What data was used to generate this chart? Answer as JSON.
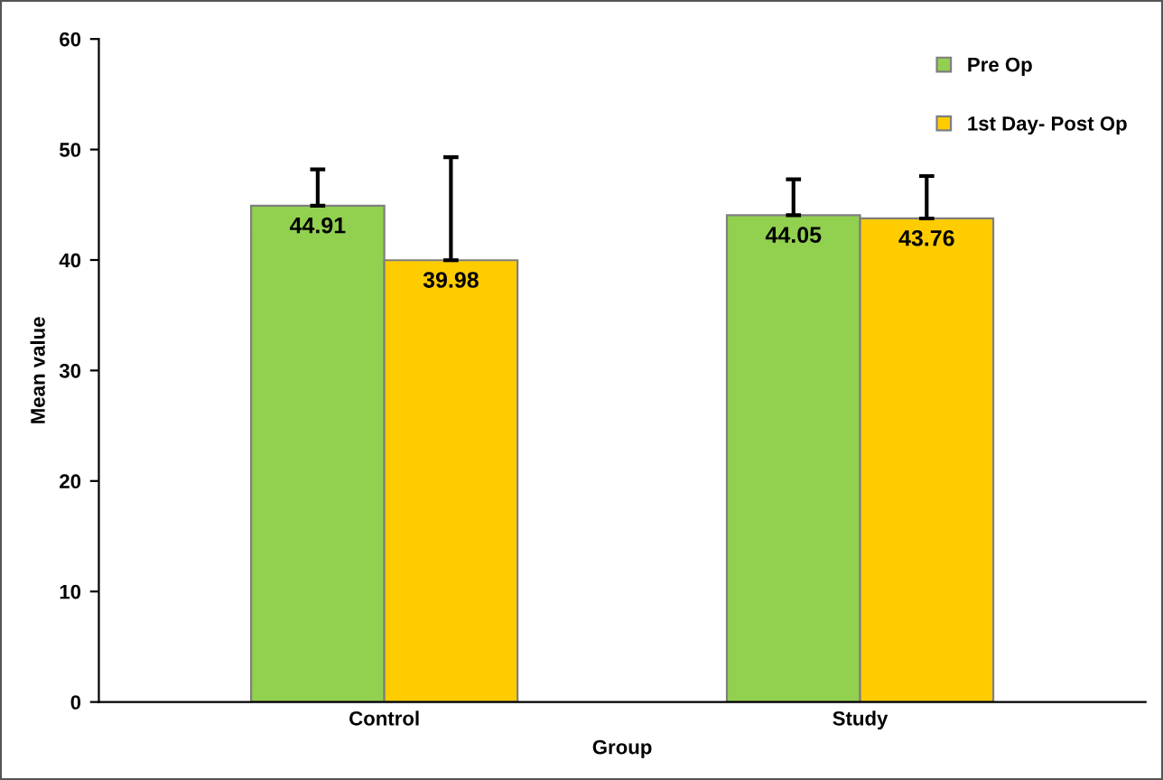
{
  "chart_data": {
    "type": "bar",
    "xlabel": "Group",
    "ylabel": "Mean value",
    "categories": [
      "Control",
      "Study"
    ],
    "series": [
      {
        "name": "Pre Op",
        "color": "#92d050",
        "values": [
          44.91,
          44.05
        ],
        "errors": [
          [
            44.91,
            48.2
          ],
          [
            44.05,
            47.3
          ]
        ]
      },
      {
        "name": "1st Day- Post Op",
        "color": "#ffcc00",
        "values": [
          39.98,
          43.76
        ],
        "errors": [
          [
            39.98,
            49.3
          ],
          [
            43.76,
            47.6
          ]
        ]
      }
    ],
    "ylim": [
      0,
      60
    ],
    "yticks": [
      0,
      10,
      20,
      30,
      40,
      50,
      60
    ],
    "data_labels": true,
    "grid": false,
    "legend": "top right"
  }
}
